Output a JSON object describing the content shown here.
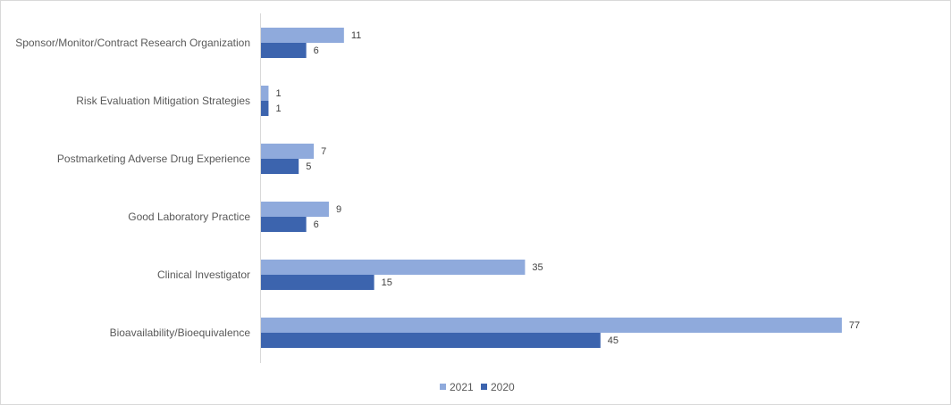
{
  "chart_data": {
    "type": "bar",
    "orientation": "horizontal",
    "title": "",
    "xlabel": "",
    "ylabel": "",
    "categories": [
      "Sponsor/Monitor/Contract Research Organization",
      "Risk Evaluation Mitigation Strategies",
      "Postmarketing Adverse Drug Experience",
      "Good Laboratory Practice",
      "Clinical Investigator",
      "Bioavailability/Bioequivalence"
    ],
    "series": [
      {
        "name": "2021",
        "color": "#8faadc",
        "values": [
          11,
          1,
          7,
          9,
          35,
          77
        ]
      },
      {
        "name": "2020",
        "color": "#3c64ae",
        "values": [
          6,
          1,
          5,
          6,
          15,
          45
        ]
      }
    ],
    "xlim": [
      0,
      80
    ],
    "grid": false,
    "data_labels": true,
    "legend_position": "bottom"
  }
}
